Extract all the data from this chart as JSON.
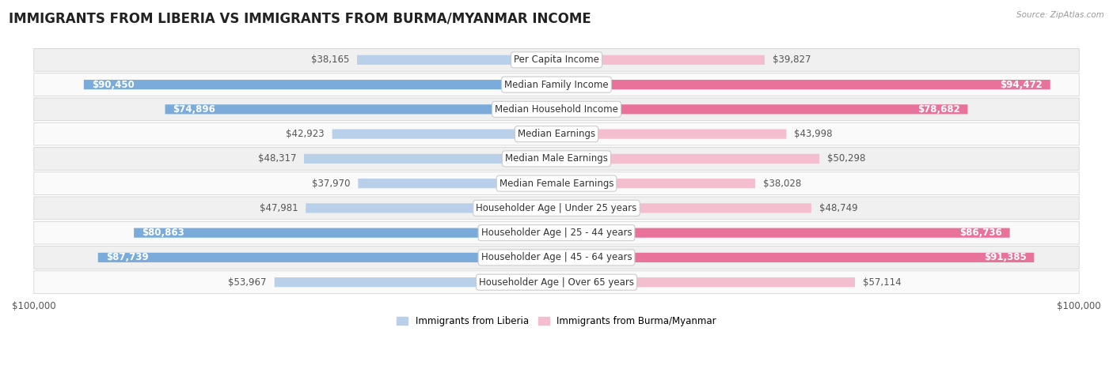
{
  "title": "IMMIGRANTS FROM LIBERIA VS IMMIGRANTS FROM BURMA/MYANMAR INCOME",
  "source": "Source: ZipAtlas.com",
  "categories": [
    "Per Capita Income",
    "Median Family Income",
    "Median Household Income",
    "Median Earnings",
    "Median Male Earnings",
    "Median Female Earnings",
    "Householder Age | Under 25 years",
    "Householder Age | 25 - 44 years",
    "Householder Age | 45 - 64 years",
    "Householder Age | Over 65 years"
  ],
  "liberia_values": [
    38165,
    90450,
    74896,
    42923,
    48317,
    37970,
    47981,
    80863,
    87739,
    53967
  ],
  "burma_values": [
    39827,
    94472,
    78682,
    43998,
    50298,
    38028,
    48749,
    86736,
    91385,
    57114
  ],
  "liberia_labels": [
    "$38,165",
    "$90,450",
    "$74,896",
    "$42,923",
    "$48,317",
    "$37,970",
    "$47,981",
    "$80,863",
    "$87,739",
    "$53,967"
  ],
  "burma_labels": [
    "$39,827",
    "$94,472",
    "$78,682",
    "$43,998",
    "$50,298",
    "$38,028",
    "$48,749",
    "$86,736",
    "$91,385",
    "$57,114"
  ],
  "liberia_color_light": "#b8d0ea",
  "liberia_color_dark": "#7aabda",
  "burma_color_light": "#f5bece",
  "burma_color_dark": "#e8729a",
  "max_value": 100000,
  "legend_liberia": "Immigrants from Liberia",
  "legend_burma": "Immigrants from Burma/Myanmar",
  "row_bg_odd": "#f0f0f0",
  "row_bg_even": "#fafafa",
  "label_fontsize": 8.5,
  "category_fontsize": 8.5,
  "title_fontsize": 12,
  "inside_label_threshold": 60000
}
